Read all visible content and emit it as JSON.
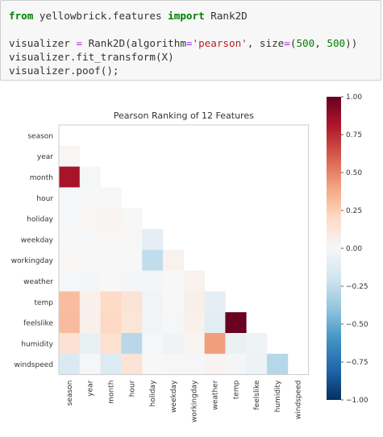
{
  "code": {
    "tokens": [
      [
        {
          "t": "from",
          "c": "kw"
        },
        {
          "t": " yellowbrick.features ",
          "c": ""
        },
        {
          "t": "import",
          "c": "kw"
        },
        {
          "t": " Rank2D",
          "c": ""
        }
      ],
      [],
      [
        {
          "t": "visualizer ",
          "c": ""
        },
        {
          "t": "=",
          "c": "op"
        },
        {
          "t": " Rank2D(algorithm",
          "c": ""
        },
        {
          "t": "=",
          "c": "op"
        },
        {
          "t": "'pearson'",
          "c": "str"
        },
        {
          "t": ", size",
          "c": ""
        },
        {
          "t": "=",
          "c": "op"
        },
        {
          "t": "(",
          "c": ""
        },
        {
          "t": "500",
          "c": "num"
        },
        {
          "t": ", ",
          "c": ""
        },
        {
          "t": "500",
          "c": "num"
        },
        {
          "t": "))",
          "c": ""
        }
      ],
      [
        {
          "t": "visualizer.fit_transform(X)",
          "c": ""
        }
      ],
      [
        {
          "t": "visualizer.poof();",
          "c": ""
        }
      ]
    ]
  },
  "chart_data": {
    "type": "heatmap",
    "title": "Pearson Ranking of 12 Features",
    "features": [
      "season",
      "year",
      "month",
      "hour",
      "holiday",
      "weekday",
      "workingday",
      "weather",
      "temp",
      "feelslike",
      "humidity",
      "windspeed"
    ],
    "matrix_lower": [
      [],
      [
        0.01
      ],
      [
        0.83,
        -0.01
      ],
      [
        -0.01,
        -0.0,
        -0.01
      ],
      [
        -0.01,
        0.01,
        0.02,
        0.0
      ],
      [
        -0.0,
        -0.01,
        0.01,
        -0.0,
        -0.1
      ],
      [
        0.01,
        -0.0,
        -0.0,
        0.0,
        -0.25,
        0.04
      ],
      [
        -0.01,
        -0.02,
        0.0,
        -0.02,
        -0.02,
        0.0,
        0.04
      ],
      [
        0.31,
        0.05,
        0.2,
        0.14,
        -0.03,
        -0.0,
        0.06,
        -0.1
      ],
      [
        0.32,
        0.05,
        0.21,
        0.13,
        -0.03,
        -0.01,
        0.05,
        -0.11,
        0.99
      ],
      [
        0.15,
        -0.08,
        0.16,
        -0.28,
        -0.01,
        -0.04,
        0.02,
        0.42,
        -0.07,
        -0.05
      ],
      [
        -0.15,
        -0.01,
        -0.14,
        0.14,
        0.0,
        0.01,
        -0.01,
        0.03,
        -0.02,
        -0.06,
        -0.29
      ]
    ],
    "colorbar": {
      "vmin": -1.0,
      "vmax": 1.0,
      "ticks": [
        "1.00",
        "0.75",
        "0.50",
        "0.25",
        "0.00",
        "−0.25",
        "−0.50",
        "−0.75",
        "−1.00"
      ],
      "colors": [
        "#053061",
        "#2166ac",
        "#4393c3",
        "#92c5de",
        "#d1e5f0",
        "#f7f7f7",
        "#fddbc7",
        "#f4a582",
        "#d6604d",
        "#b2182b",
        "#67001f"
      ]
    }
  }
}
